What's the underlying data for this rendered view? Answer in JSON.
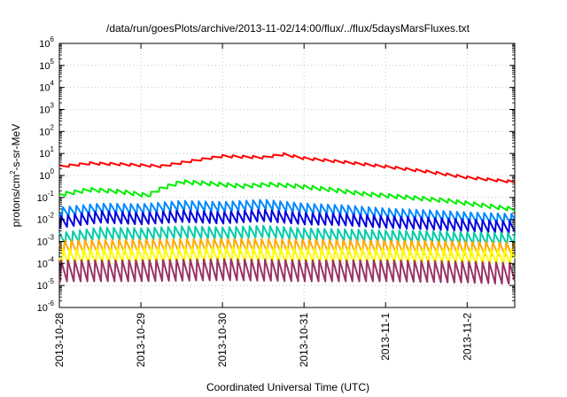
{
  "chart_data": {
    "type": "line",
    "title": "/data/run/goesPlots/archive/2013-11-02/14:00/flux/../flux/5daysMarsFluxes.txt",
    "xlabel": "Coordinated Universal Time (UTC)",
    "ylabel": "protons/cm²-s-sr-MeV",
    "ylabel_parts": {
      "base": "protons/cm",
      "sup": "2",
      "rest": "-s-sr-MeV"
    },
    "yscale": "log",
    "ylim": [
      1e-06,
      1000000.0
    ],
    "y_ticks": [
      {
        "exp": -6,
        "base": "10",
        "sup": "-6"
      },
      {
        "exp": -5,
        "base": "10",
        "sup": "-5"
      },
      {
        "exp": -4,
        "base": "10",
        "sup": "-4"
      },
      {
        "exp": -3,
        "base": "10",
        "sup": "-3"
      },
      {
        "exp": -2,
        "base": "10",
        "sup": "-2"
      },
      {
        "exp": -1,
        "base": "10",
        "sup": "-1"
      },
      {
        "exp": 0,
        "base": "10",
        "sup": "0"
      },
      {
        "exp": 1,
        "base": "10",
        "sup": "1"
      },
      {
        "exp": 2,
        "base": "10",
        "sup": "2"
      },
      {
        "exp": 3,
        "base": "10",
        "sup": "3"
      },
      {
        "exp": 4,
        "base": "10",
        "sup": "4"
      },
      {
        "exp": 5,
        "base": "10",
        "sup": "5"
      },
      {
        "exp": 6,
        "base": "10",
        "sup": "6"
      }
    ],
    "xlim": [
      "2013-10-28 00:00",
      "2013-11-02 14:00"
    ],
    "x_ticks": [
      {
        "label": "2013-10-28",
        "time": "2013-10-28 00:00"
      },
      {
        "label": "2013-10-29",
        "time": "2013-10-29 00:00"
      },
      {
        "label": "2013-10-30",
        "time": "2013-10-30 00:00"
      },
      {
        "label": "2013-10-31",
        "time": "2013-10-31 00:00"
      },
      {
        "label": "2013-11-1",
        "time": "2013-11-01 00:00"
      },
      {
        "label": "2013-11-2",
        "time": "2013-11-02 00:00"
      }
    ],
    "grid": true,
    "series": [
      {
        "color": "#ff0000",
        "x": [
          "2013-10-28 00:00",
          "2013-10-28 09:00",
          "2013-10-28 18:00",
          "2013-10-29 06:00",
          "2013-10-29 15:00",
          "2013-10-30 00:00",
          "2013-10-30 12:00",
          "2013-10-30 18:00",
          "2013-10-31 00:00",
          "2013-10-31 12:00",
          "2013-11-01 00:00",
          "2013-11-01 12:00",
          "2013-11-02 00:00",
          "2013-11-02 14:00"
        ],
        "y": [
          2.5,
          3.5,
          3.2,
          2.6,
          4.5,
          7.5,
          6.5,
          9,
          6,
          4,
          2.5,
          1.5,
          0.8,
          0.5
        ]
      },
      {
        "color": "#00ee00",
        "x": [
          "2013-10-28 00:00",
          "2013-10-28 09:00",
          "2013-10-28 18:00",
          "2013-10-29 02:00",
          "2013-10-29 06:00",
          "2013-10-29 12:00",
          "2013-10-29 20:00",
          "2013-10-30 06:00",
          "2013-10-30 14:00",
          "2013-10-30 22:00",
          "2013-10-31 08:00",
          "2013-10-31 18:00",
          "2013-11-01 06:00",
          "2013-11-01 18:00",
          "2013-11-02 06:00",
          "2013-11-02 14:00"
        ],
        "y": [
          0.13,
          0.22,
          0.18,
          0.12,
          0.25,
          0.5,
          0.42,
          0.32,
          0.38,
          0.32,
          0.22,
          0.14,
          0.1,
          0.07,
          0.04,
          0.028
        ]
      },
      {
        "color": "#0088ff",
        "x": [
          "2013-10-28 00:00",
          "2013-10-28 12:00",
          "2013-10-29 00:00",
          "2013-10-29 12:00",
          "2013-10-30 00:00",
          "2013-10-30 12:00",
          "2013-10-31 00:00",
          "2013-10-31 12:00",
          "2013-11-01 00:00",
          "2013-11-01 12:00",
          "2013-11-02 00:00",
          "2013-11-02 14:00"
        ],
        "y": [
          0.02,
          0.03,
          0.028,
          0.04,
          0.035,
          0.045,
          0.03,
          0.025,
          0.018,
          0.015,
          0.012,
          0.01
        ]
      },
      {
        "color": "#0000dd",
        "x": [
          "2013-10-28 00:00",
          "2013-10-28 12:00",
          "2013-10-29 00:00",
          "2013-10-29 12:00",
          "2013-10-30 00:00",
          "2013-10-30 12:00",
          "2013-10-31 00:00",
          "2013-10-31 12:00",
          "2013-11-01 00:00",
          "2013-11-01 12:00",
          "2013-11-02 00:00",
          "2013-11-02 14:00"
        ],
        "y": [
          0.007,
          0.012,
          0.01,
          0.013,
          0.011,
          0.014,
          0.01,
          0.009,
          0.007,
          0.006,
          0.005,
          0.004
        ]
      },
      {
        "color": "#00ccaa",
        "x": [
          "2013-10-28 00:00",
          "2013-10-28 12:00",
          "2013-10-29 00:00",
          "2013-10-29 12:00",
          "2013-10-30 00:00",
          "2013-10-30 12:00",
          "2013-10-31 00:00",
          "2013-10-31 12:00",
          "2013-11-01 00:00",
          "2013-11-01 12:00",
          "2013-11-02 00:00",
          "2013-11-02 14:00"
        ],
        "y": [
          0.0012,
          0.0022,
          0.002,
          0.0025,
          0.0022,
          0.0026,
          0.002,
          0.0018,
          0.0016,
          0.0015,
          0.0013,
          0.0012
        ]
      },
      {
        "color": "#ffaa00",
        "x": [
          "2013-10-28 00:00",
          "2013-10-29 00:00",
          "2013-10-30 00:00",
          "2013-10-31 00:00",
          "2013-11-01 00:00",
          "2013-11-02 00:00",
          "2013-11-02 14:00"
        ],
        "y": [
          0.0005,
          0.00055,
          0.0006,
          0.00055,
          0.0005,
          0.00045,
          0.0004
        ]
      },
      {
        "color": "#ffff00",
        "x": [
          "2013-10-28 00:00",
          "2013-10-29 00:00",
          "2013-10-30 00:00",
          "2013-10-31 00:00",
          "2013-11-01 00:00",
          "2013-11-02 00:00",
          "2013-11-02 14:00"
        ],
        "y": [
          0.00018,
          0.0002,
          0.00022,
          0.0002,
          0.00019,
          0.00018,
          0.00017
        ]
      },
      {
        "color": "#993366",
        "x": [
          "2013-10-28 00:00",
          "2013-10-29 00:00",
          "2013-10-30 00:00",
          "2013-10-31 00:00",
          "2013-11-01 00:00",
          "2013-11-02 00:00",
          "2013-11-02 14:00"
        ],
        "y": [
          4e-05,
          4e-05,
          4.5e-05,
          4e-05,
          4e-05,
          3.5e-05,
          3e-05
        ]
      }
    ]
  }
}
